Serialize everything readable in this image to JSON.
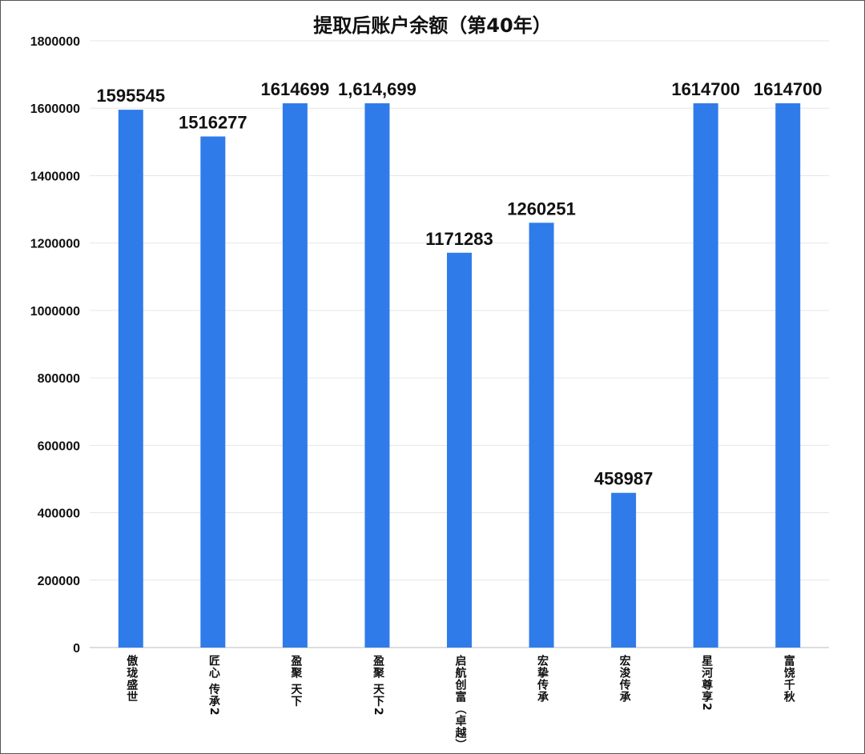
{
  "chart_data": {
    "type": "bar",
    "title": "提取后账户余额（第40年）",
    "xlabel": "",
    "ylabel": "",
    "ylim": [
      0,
      1800000
    ],
    "yticks": [
      0,
      200000,
      400000,
      600000,
      800000,
      1000000,
      1200000,
      1400000,
      1600000,
      1800000
    ],
    "grid": true,
    "categories": [
      "傲珑盛世",
      "匠心 传承2",
      "盈聚 天下",
      "盈聚 天下2",
      "启航创富（卓越）",
      "宏挚传承",
      "宏浚传承",
      "星河尊享2",
      "富饶千秋"
    ],
    "values": [
      1595545,
      1516277,
      1614699,
      1614699,
      1171283,
      1260251,
      458987,
      1614700,
      1614700
    ],
    "data_labels": [
      "1595545",
      "1516277",
      "1614699",
      "1,614,699",
      "1171283",
      "1260251",
      "458987",
      "1614700",
      "1614700"
    ],
    "bar_color": "#2f7bea"
  }
}
